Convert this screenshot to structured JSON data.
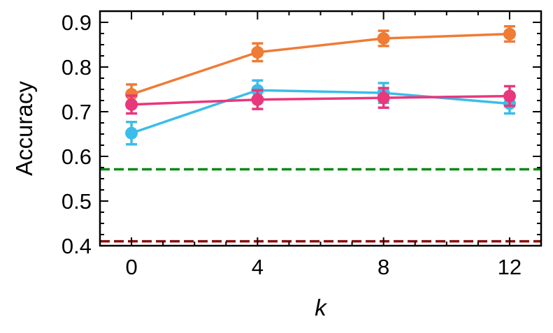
{
  "chart_data": {
    "type": "line",
    "xlabel": "k",
    "ylabel": "Accuracy",
    "xlim": [
      -1,
      13
    ],
    "ylim": [
      0.4,
      0.925
    ],
    "x_ticks": [
      0,
      4,
      8,
      12
    ],
    "y_ticks": [
      0.4,
      0.5,
      0.6,
      0.7,
      0.8,
      0.9
    ],
    "x_tick_labels": [
      "0",
      "4",
      "8",
      "12"
    ],
    "y_tick_labels": [
      "0.4",
      "0.5",
      "0.6",
      "0.7",
      "0.8",
      "0.9"
    ],
    "grid": false,
    "series": [
      {
        "color": "#ef7b35",
        "x": [
          0,
          4,
          8,
          12
        ],
        "values": [
          0.739,
          0.833,
          0.864,
          0.874
        ],
        "errors": [
          0.022,
          0.02,
          0.017,
          0.017
        ]
      },
      {
        "color": "#3bbde9",
        "x": [
          0,
          4,
          8,
          12
        ],
        "values": [
          0.652,
          0.748,
          0.742,
          0.718
        ],
        "errors": [
          0.025,
          0.022,
          0.022,
          0.022
        ]
      },
      {
        "color": "#e8377c",
        "x": [
          0,
          4,
          8,
          12
        ],
        "values": [
          0.716,
          0.727,
          0.731,
          0.735
        ],
        "errors": [
          0.02,
          0.021,
          0.022,
          0.022
        ]
      }
    ],
    "reference_lines": [
      {
        "color": "#0b8a12",
        "y": 0.571,
        "style": "dashed"
      },
      {
        "color": "#8b0e0e",
        "y": 0.41,
        "style": "dashed"
      }
    ]
  }
}
